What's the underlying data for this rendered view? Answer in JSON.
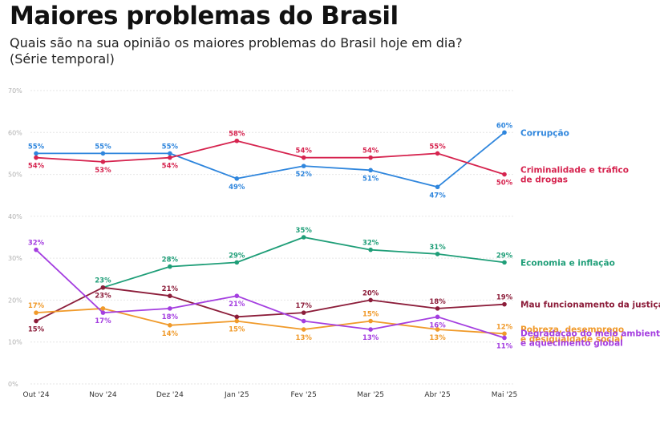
{
  "header": {
    "title": "Maiores problemas do Brasil",
    "subtitle_line1": "Quais são na sua opinião os maiores problemas do Brasil hoje em dia?",
    "subtitle_line2": "(Série temporal)"
  },
  "chart_data": {
    "type": "line",
    "title": "Maiores problemas do Brasil",
    "subtitle": "Quais são na sua opinião os maiores problemas do Brasil hoje em dia? (Série temporal)",
    "xlabel": "",
    "ylabel": "",
    "ylim": [
      0,
      70
    ],
    "y_ticks": [
      "0%",
      "10%",
      "20%",
      "30%",
      "40%",
      "50%",
      "60%",
      "70%"
    ],
    "grid": true,
    "legend_position": "right",
    "categories": [
      "Out '24",
      "Nov '24",
      "Dez '24",
      "Jan '25",
      "Fev '25",
      "Mar '25",
      "Abr '25",
      "Mai '25"
    ],
    "series": [
      {
        "name": "Corrupção",
        "name_lines": [
          "Corrupção"
        ],
        "color": "#2f86dd",
        "values": [
          55,
          55,
          55,
          49,
          52,
          51,
          47,
          60
        ],
        "label_pos": [
          "above",
          "above",
          "above",
          "below",
          "below",
          "below",
          "below",
          "above"
        ]
      },
      {
        "name": "Criminalidade e tráfico de drogas",
        "name_lines": [
          "Criminalidade e tráfico",
          "de drogas"
        ],
        "color": "#d6244f",
        "values": [
          54,
          53,
          54,
          58,
          54,
          54,
          55,
          50
        ],
        "label_pos": [
          "below",
          "below",
          "below",
          "above",
          "above",
          "above",
          "above",
          "below"
        ]
      },
      {
        "name": "Economia e inflação",
        "name_lines": [
          "Economia e inflação"
        ],
        "color": "#1f9e78",
        "values": [
          null,
          23,
          28,
          29,
          35,
          32,
          31,
          29
        ],
        "label_pos": [
          "above",
          "above",
          "above",
          "above",
          "above",
          "above",
          "above",
          "above"
        ]
      },
      {
        "name": "Mau funcionamento da justiça",
        "name_lines": [
          "Mau funcionamento da justiça"
        ],
        "color": "#8c1d3a",
        "values": [
          15,
          23,
          21,
          16,
          17,
          20,
          18,
          19
        ],
        "label_pos": [
          "below",
          "below",
          "above",
          "none",
          "above",
          "above",
          "above",
          "above"
        ]
      },
      {
        "name": "Pobreza, desemprego e desigualdade social",
        "name_lines": [
          "Pobreza, desemprego",
          "e desigualdade social"
        ],
        "color": "#f09a2a",
        "values": [
          17,
          18,
          14,
          15,
          13,
          15,
          13,
          12
        ],
        "label_pos": [
          "above",
          "none",
          "below",
          "below",
          "below",
          "above",
          "below",
          "above"
        ]
      },
      {
        "name": "Degradação do meio ambiente e aquecimento global",
        "name_lines": [
          "Degradação do meio ambiente",
          "e aquecimento global"
        ],
        "color": "#a43ee0",
        "values": [
          32,
          17,
          18,
          21,
          15,
          13,
          16,
          11
        ],
        "label_pos": [
          "above",
          "below",
          "below",
          "below",
          "none",
          "below",
          "below",
          "below"
        ]
      }
    ]
  }
}
